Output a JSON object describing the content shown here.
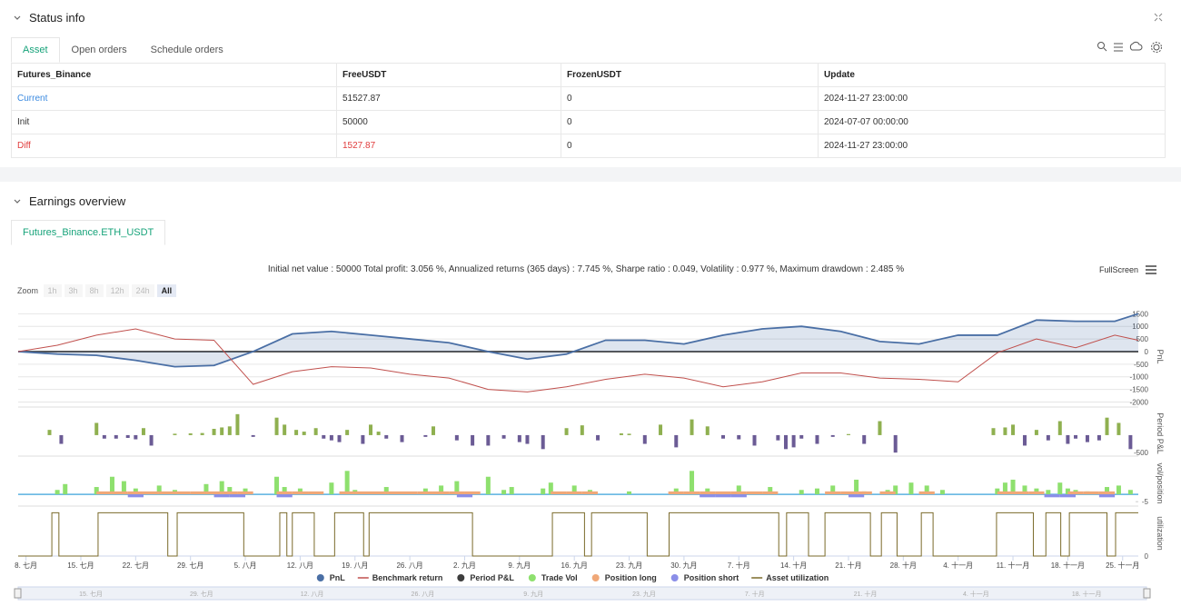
{
  "status": {
    "title": "Status info",
    "tabs": [
      "Asset",
      "Open orders",
      "Schedule orders"
    ],
    "table": {
      "columns": [
        "Futures_Binance",
        "FreeUSDT",
        "FrozenUSDT",
        "Update"
      ],
      "rows": [
        [
          "Current",
          "51527.87",
          "0",
          "2024-11-27 23:00:00"
        ],
        [
          "Init",
          "50000",
          "0",
          "2024-07-07 00:00:00"
        ],
        [
          "Diff",
          "1527.87",
          "0",
          "2024-11-27 23:00:00"
        ]
      ]
    }
  },
  "earnings": {
    "title": "Earnings overview",
    "tab": "Futures_Binance.ETH_USDT",
    "summary": "Initial net value : 50000 Total profit: 3.056 %, Annualized returns (365 days) : 7.745 %, Sharpe ratio : 0.049, Volatility : 0.977 %, Maximum drawdown : 2.485 %",
    "fullscreen": "FullScreen",
    "zoom_label": "Zoom",
    "zoom_buttons": [
      "1h",
      "3h",
      "8h",
      "12h",
      "24h",
      "All"
    ]
  },
  "chart_data": {
    "type": "line",
    "xlim": [
      0,
      143
    ],
    "xticks": [
      {
        "value": 1,
        "label": "8. 七月"
      },
      {
        "value": 8,
        "label": "15. 七月"
      },
      {
        "value": 15,
        "label": "22. 七月"
      },
      {
        "value": 22,
        "label": "29. 七月"
      },
      {
        "value": 29,
        "label": "5. 八月"
      },
      {
        "value": 36,
        "label": "12. 八月"
      },
      {
        "value": 43,
        "label": "19. 八月"
      },
      {
        "value": 50,
        "label": "26. 八月"
      },
      {
        "value": 57,
        "label": "2. 九月"
      },
      {
        "value": 64,
        "label": "9. 九月"
      },
      {
        "value": 71,
        "label": "16. 九月"
      },
      {
        "value": 78,
        "label": "23. 九月"
      },
      {
        "value": 85,
        "label": "30. 九月"
      },
      {
        "value": 92,
        "label": "7. 十月"
      },
      {
        "value": 99,
        "label": "14. 十月"
      },
      {
        "value": 106,
        "label": "21. 十月"
      },
      {
        "value": 113,
        "label": "28. 十月"
      },
      {
        "value": 120,
        "label": "4. 十一月"
      },
      {
        "value": 127,
        "label": "11. 十一月"
      },
      {
        "value": 134,
        "label": "18. 十一月"
      },
      {
        "value": 141,
        "label": "25. 十一月"
      }
    ],
    "navigator_labels": [
      "15. 七月",
      "29. 七月",
      "12. 八月",
      "26. 八月",
      "9. 九月",
      "23. 九月",
      "7. 十月",
      "21. 十月",
      "4. 十一月",
      "18. 十一月"
    ],
    "panels": [
      {
        "axis_label": "PnL",
        "ylim": [
          -2200,
          1800
        ],
        "yticks": [
          1500,
          1000,
          500,
          0,
          -500,
          -1000,
          -1500,
          -2000
        ],
        "grid": true
      },
      {
        "axis_label": "Period P&L",
        "ylim": [
          -600,
          700
        ],
        "yticks": [
          -500
        ],
        "grid": false
      },
      {
        "axis_label": "vol/position",
        "ylim": [
          -8,
          23
        ],
        "yticks": [
          -5
        ],
        "grid": false
      },
      {
        "axis_label": "utilization",
        "ylim": [
          0,
          1.05
        ],
        "yticks": [
          0
        ],
        "grid": false
      }
    ],
    "series": [
      {
        "name": "PnL",
        "color": "#4a6fa5",
        "panel": 0,
        "style": "area",
        "x": [
          0,
          5,
          10,
          15,
          20,
          25,
          30,
          35,
          40,
          45,
          50,
          55,
          60,
          65,
          70,
          75,
          80,
          85,
          90,
          95,
          100,
          105,
          110,
          115,
          120,
          125,
          130,
          135,
          140,
          143
        ],
        "values": [
          0,
          -100,
          -150,
          -350,
          -600,
          -550,
          0,
          700,
          800,
          650,
          500,
          350,
          0,
          -300,
          -100,
          450,
          450,
          300,
          650,
          900,
          1000,
          800,
          400,
          300,
          650,
          650,
          1250,
          1200,
          1200,
          1500
        ]
      },
      {
        "name": "Benchmark return",
        "color": "#c0504d",
        "panel": 0,
        "style": "line",
        "x": [
          0,
          5,
          10,
          15,
          20,
          25,
          30,
          35,
          40,
          45,
          50,
          55,
          60,
          65,
          70,
          75,
          80,
          85,
          90,
          95,
          100,
          105,
          110,
          115,
          120,
          125,
          130,
          135,
          140,
          143
        ],
        "values": [
          0,
          250,
          650,
          900,
          500,
          450,
          -1300,
          -800,
          -600,
          -650,
          -900,
          -1050,
          -1500,
          -1600,
          -1400,
          -1100,
          -900,
          -1050,
          -1400,
          -1200,
          -850,
          -850,
          -1050,
          -1100,
          -1200,
          -50,
          500,
          150,
          650,
          450
        ]
      },
      {
        "name": "Period P&L",
        "color": "#3d3d3d",
        "up_color": "#8fb050",
        "down_color": "#6b5b95",
        "panel": 1,
        "style": "bar",
        "x": [
          4,
          5.5,
          10,
          11,
          12.5,
          14,
          15,
          16,
          17,
          20,
          22,
          23.5,
          25,
          26,
          27,
          28,
          30,
          33,
          34,
          35.5,
          36.5,
          38,
          39,
          40,
          41,
          42,
          44,
          45,
          46,
          47,
          49,
          52,
          53,
          56,
          58,
          60,
          62,
          64,
          65,
          67,
          70,
          72,
          74,
          77,
          78,
          80,
          82,
          84,
          86,
          88,
          90,
          92,
          94,
          97,
          98,
          99,
          100,
          102,
          104,
          106,
          108,
          110,
          112,
          124.5,
          126,
          127,
          128.5,
          130,
          131.5,
          133,
          134,
          135,
          136.5,
          138,
          139,
          140.5,
          142
        ],
        "values": [
          150,
          -250,
          350,
          -100,
          -100,
          -80,
          -120,
          200,
          -300,
          40,
          50,
          60,
          180,
          220,
          250,
          600,
          -50,
          500,
          300,
          150,
          100,
          200,
          -100,
          -150,
          -200,
          150,
          -250,
          300,
          100,
          -100,
          -200,
          -50,
          250,
          -150,
          -300,
          -300,
          -100,
          -200,
          -250,
          -400,
          200,
          280,
          -150,
          50,
          40,
          -250,
          300,
          -350,
          450,
          250,
          -100,
          -120,
          -300,
          -150,
          -400,
          -350,
          -100,
          -250,
          -50,
          30,
          -250,
          400,
          -500,
          200,
          220,
          300,
          -300,
          150,
          -150,
          400,
          -250,
          -100,
          -200,
          -150,
          500,
          350,
          -400
        ]
      },
      {
        "name": "Trade Vol",
        "color": "#8ee06e",
        "panel": 2,
        "style": "bar",
        "x": [
          5,
          6,
          10,
          12,
          13.5,
          15,
          18,
          20,
          24,
          26,
          27,
          29,
          33,
          34,
          36,
          40,
          42,
          43,
          47,
          52,
          54,
          56,
          60,
          62,
          63,
          67,
          68,
          71,
          73,
          78,
          84,
          86,
          88,
          92,
          96,
          100,
          102,
          104,
          107,
          108,
          111,
          112,
          114,
          116,
          118,
          125,
          126,
          127,
          128.5,
          130,
          131.5,
          133,
          134,
          135,
          136.5,
          139,
          140.5,
          142
        ],
        "values": [
          3,
          7,
          5,
          12,
          9,
          4,
          6,
          3,
          7,
          9,
          5,
          4,
          12,
          5,
          4,
          8,
          16,
          3,
          5,
          4,
          6,
          9,
          12,
          3,
          5,
          4,
          8,
          6,
          3,
          2,
          4,
          16,
          4,
          6,
          5,
          3,
          4,
          6,
          10,
          2,
          3,
          6,
          8,
          6,
          3,
          4,
          8,
          10,
          6,
          4,
          3,
          8,
          4,
          3,
          2,
          5,
          6,
          3
        ]
      },
      {
        "name": "Position long",
        "color": "#f0a878",
        "panel": 2,
        "style": "band",
        "x": [
          10,
          12,
          14,
          16,
          18,
          20,
          22,
          24,
          26,
          28,
          33,
          35,
          37,
          41,
          43,
          45,
          47,
          49,
          51,
          53,
          55,
          57,
          68,
          70,
          72,
          83,
          85,
          87,
          89,
          91,
          93,
          95,
          103,
          105,
          107,
          110,
          115,
          125,
          127,
          129,
          134,
          136,
          138
        ],
        "values": [
          2,
          2,
          2,
          2,
          2,
          2,
          2,
          2,
          2,
          2,
          2,
          2,
          2,
          2,
          2,
          2,
          2,
          2,
          2,
          2,
          2,
          2,
          2,
          2,
          2,
          2,
          2,
          2,
          2,
          2,
          2,
          2,
          2,
          2,
          2,
          2,
          2,
          2,
          2,
          2,
          2,
          2,
          2
        ]
      },
      {
        "name": "Position short",
        "color": "#8a8ee8",
        "panel": 2,
        "style": "band",
        "x": [
          14,
          25,
          27,
          33,
          56,
          87,
          89,
          91,
          106,
          131,
          133,
          138
        ],
        "values": [
          -2,
          -2,
          -2,
          -2,
          -2,
          -2,
          -2,
          -2,
          -2,
          -2,
          -2,
          -2
        ]
      },
      {
        "name": "Asset utilization",
        "color": "#7a6a2a",
        "panel": 3,
        "style": "step",
        "x": [
          0,
          4.3,
          5.2,
          10.2,
          19.1,
          20.3,
          28.8,
          33.4,
          34.3,
          35,
          37.8,
          40.4,
          44.1,
          44.8,
          58,
          68.2,
          72.3,
          73.2,
          80.3,
          83.1,
          97.1,
          98.1,
          100.9,
          103,
          108.8,
          110.2,
          112.2,
          115.3,
          116.8,
          124.9,
          129.6,
          131.2,
          133.1,
          134.2,
          139,
          140.1,
          143
        ],
        "values": [
          0,
          1,
          0,
          1,
          0,
          1,
          0,
          1,
          0,
          1,
          0,
          1,
          0,
          1,
          0,
          1,
          0,
          1,
          0,
          1,
          0,
          1,
          0,
          1,
          0,
          1,
          0,
          1,
          0,
          1,
          0,
          1,
          0,
          1,
          0,
          1,
          1
        ]
      }
    ]
  }
}
